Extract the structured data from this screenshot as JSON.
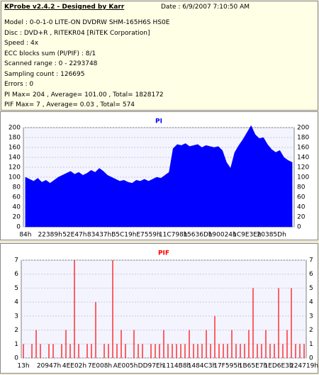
{
  "header": {
    "title": "KProbe v2.4.2 - Designed by Karr",
    "date": "Date : 6/9/2007 7:10:50 AM",
    "lines": [
      "Model : 0-0-1-0 LITE-ON DVDRW SHM-165H6S HS0E",
      "Disc : DVD+R , RITEKR04 [RiTEK Corporation]",
      "Speed : 4x",
      "ECC blocks sum (PI/PIF) : 8/1",
      "Scanned range : 0 - 2293748",
      "Sampling count : 126695",
      "Errors : 0",
      "PI Max= 204 , Average= 101.00 , Total= 1828172",
      "PIF Max= 7 , Average= 0.03 , Total= 574"
    ]
  },
  "chart_data": [
    {
      "type": "area",
      "title": "PI",
      "color": "#0000ff",
      "grid": true,
      "categories": [
        "84h",
        null,
        null,
        null,
        null,
        null,
        "22389h",
        null,
        null,
        null,
        null,
        null,
        "52E47h",
        null,
        null,
        null,
        null,
        null,
        "83437h",
        null,
        null,
        null,
        null,
        null,
        "B5C19h",
        null,
        null,
        null,
        null,
        null,
        "E7559h",
        null,
        null,
        null,
        null,
        null,
        "11C798h",
        null,
        null,
        null,
        null,
        null,
        "15636Dh",
        null,
        null,
        null,
        null,
        null,
        "190024h",
        null,
        null,
        null,
        null,
        null,
        "1C9E3Eh",
        null,
        null,
        null,
        null,
        null,
        "20385Dh",
        null,
        null,
        null,
        null,
        null
      ],
      "values": [
        100,
        96,
        92,
        98,
        90,
        94,
        88,
        94,
        100,
        104,
        108,
        112,
        106,
        110,
        104,
        108,
        114,
        110,
        118,
        112,
        104,
        100,
        96,
        92,
        94,
        90,
        88,
        94,
        92,
        96,
        92,
        96,
        100,
        98,
        104,
        110,
        158,
        166,
        164,
        168,
        162,
        164,
        166,
        160,
        164,
        162,
        160,
        162,
        154,
        130,
        118,
        150,
        164,
        176,
        190,
        204,
        186,
        178,
        180,
        166,
        156,
        150,
        154,
        140,
        134,
        130
      ],
      "ylim": [
        0,
        200
      ],
      "yticks": [
        0,
        20,
        40,
        60,
        80,
        100,
        120,
        140,
        160,
        180,
        200
      ]
    },
    {
      "type": "bar",
      "title": "PIF",
      "color": "#ff0000",
      "grid": true,
      "categories": [
        "13h",
        null,
        null,
        null,
        null,
        null,
        "20947h",
        null,
        null,
        null,
        null,
        null,
        "4EE02h",
        null,
        null,
        null,
        null,
        null,
        "7E008h",
        null,
        null,
        null,
        null,
        null,
        "AE005h",
        null,
        null,
        null,
        null,
        null,
        "DD97Eh",
        null,
        null,
        null,
        null,
        null,
        "1114B8h",
        null,
        null,
        null,
        null,
        null,
        "1484C3h",
        null,
        null,
        null,
        null,
        null,
        "17F595h",
        null,
        null,
        null,
        null,
        null,
        "1B65E7h",
        null,
        null,
        null,
        null,
        null,
        "1ED6E3h",
        null,
        null,
        null,
        null,
        null,
        "224719h"
      ],
      "values": [
        1,
        0,
        1,
        2,
        1,
        0,
        1,
        1,
        0,
        1,
        2,
        1,
        7,
        1,
        0,
        1,
        1,
        4,
        0,
        1,
        1,
        7,
        1,
        2,
        1,
        0,
        2,
        1,
        1,
        0,
        1,
        1,
        1,
        2,
        1,
        1,
        1,
        1,
        1,
        2,
        1,
        1,
        1,
        2,
        1,
        3,
        1,
        1,
        1,
        2,
        1,
        1,
        1,
        2,
        5,
        1,
        1,
        2,
        1,
        1,
        5,
        1,
        2,
        5,
        1,
        1,
        1
      ],
      "ylim": [
        0,
        7
      ],
      "yticks": [
        0,
        1,
        2,
        3,
        4,
        5,
        6,
        7
      ]
    }
  ]
}
